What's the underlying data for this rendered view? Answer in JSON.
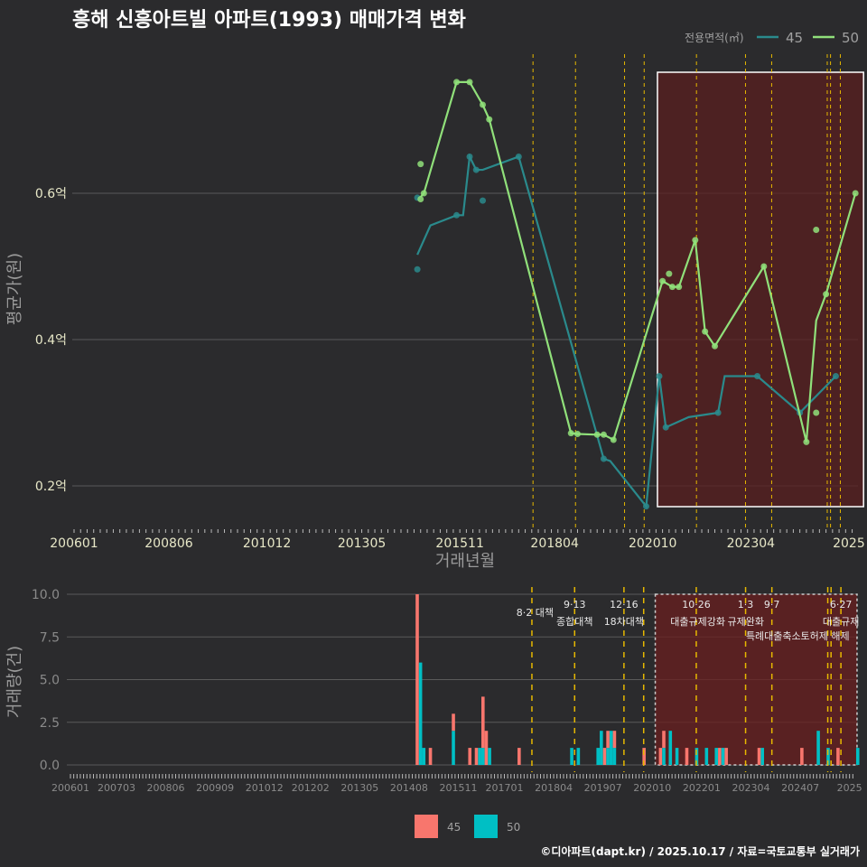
{
  "title": "흥해 신흥아트빌 아파트(1993) 매매가격 변화",
  "caption": "©디아파트(dapt.kr) / 2025.10.17 / 자료=국토교통부 실거래가",
  "colors": {
    "s45_line": "#2a8a8c",
    "s50_line": "#90e07a",
    "bar45": "#f8766d",
    "bar50": "#00bfc4",
    "event": "#e6b800",
    "highlight": "#5a1f1f"
  },
  "chart_data": [
    {
      "type": "line",
      "title": "흥해 신흥아트빌 아파트(1993) 매매가격 변화",
      "xlabel": "거래년월",
      "ylabel": "평균가(원)",
      "ylim": [
        0.15,
        0.8
      ],
      "yticks": [
        {
          "v": 0.2,
          "label": "0.2억"
        },
        {
          "v": 0.4,
          "label": "0.4억"
        },
        {
          "v": 0.6,
          "label": "0.6억"
        }
      ],
      "xticks": [
        "200601",
        "200806",
        "201012",
        "201305",
        "201511",
        "201804",
        "202010",
        "202304",
        "2025"
      ],
      "legend": {
        "title": "전용면적(㎡)",
        "entries": [
          "45",
          "50"
        ],
        "position": "top-right"
      },
      "series": [
        {
          "name": "45",
          "line": [
            [
              "201410",
              0.516
            ],
            [
              "201502",
              0.556
            ],
            [
              "201510",
              0.57
            ],
            [
              "201512",
              0.57
            ],
            [
              "201602",
              0.65
            ],
            [
              "201604",
              0.632
            ],
            [
              "201606",
              0.632
            ],
            [
              "201705",
              0.65
            ],
            [
              "201907",
              0.237
            ],
            [
              "201909",
              0.234
            ],
            [
              "202008",
              0.172
            ],
            [
              "202012",
              0.35
            ],
            [
              "202102",
              0.28
            ],
            [
              "202109",
              0.294
            ],
            [
              "202206",
              0.3
            ],
            [
              "202208",
              0.35
            ],
            [
              "202306",
              0.35
            ],
            [
              "202407",
              0.3
            ],
            [
              "202506",
              0.35
            ]
          ],
          "points": [
            [
              "201410",
              0.496
            ],
            [
              "201410",
              0.594
            ],
            [
              "201606",
              0.59
            ],
            [
              "201510",
              0.57
            ],
            [
              "201602",
              0.65
            ],
            [
              "201604",
              0.632
            ],
            [
              "201705",
              0.65
            ],
            [
              "201907",
              0.237
            ],
            [
              "202008",
              0.172
            ],
            [
              "202012",
              0.35
            ],
            [
              "202102",
              0.28
            ],
            [
              "202206",
              0.3
            ],
            [
              "202306",
              0.35
            ],
            [
              "202407",
              0.3
            ],
            [
              "202506",
              0.35
            ]
          ]
        },
        {
          "name": "50",
          "line": [
            [
              "201411",
              0.595
            ],
            [
              "201412",
              0.6
            ],
            [
              "201510",
              0.752
            ],
            [
              "201602",
              0.752
            ],
            [
              "201606",
              0.721
            ],
            [
              "201608",
              0.701
            ],
            [
              "201809",
              0.272
            ],
            [
              "201811",
              0.271
            ],
            [
              "201905",
              0.27
            ],
            [
              "201907",
              0.27
            ],
            [
              "201910",
              0.263
            ],
            [
              "202101",
              0.48
            ],
            [
              "202104",
              0.472
            ],
            [
              "202106",
              0.472
            ],
            [
              "202111",
              0.536
            ],
            [
              "202202",
              0.411
            ],
            [
              "202205",
              0.391
            ],
            [
              "202308",
              0.5
            ],
            [
              "202409",
              0.26
            ],
            [
              "202412",
              0.426
            ],
            [
              "202503",
              0.462
            ],
            [
              "202512",
              0.6
            ]
          ],
          "points": [
            [
              "201411",
              0.64
            ],
            [
              "201411",
              0.592
            ],
            [
              "201412",
              0.6
            ],
            [
              "201510",
              0.752
            ],
            [
              "201602",
              0.752
            ],
            [
              "201606",
              0.721
            ],
            [
              "201608",
              0.701
            ],
            [
              "201809",
              0.272
            ],
            [
              "201811",
              0.271
            ],
            [
              "201905",
              0.27
            ],
            [
              "201907",
              0.27
            ],
            [
              "201910",
              0.263
            ],
            [
              "202101",
              0.48
            ],
            [
              "202103",
              0.49
            ],
            [
              "202104",
              0.472
            ],
            [
              "202106",
              0.472
            ],
            [
              "202111",
              0.536
            ],
            [
              "202202",
              0.411
            ],
            [
              "202205",
              0.391
            ],
            [
              "202308",
              0.5
            ],
            [
              "202409",
              0.26
            ],
            [
              "202412",
              0.55
            ],
            [
              "202412",
              0.3
            ],
            [
              "202503",
              0.462
            ],
            [
              "202512",
              0.6
            ]
          ]
        }
      ],
      "highlight": [
        "202012",
        "202512"
      ]
    },
    {
      "type": "bar",
      "xlabel": "",
      "ylabel": "거래량(건)",
      "ylim": [
        0,
        10
      ],
      "yticks": [
        {
          "v": 0,
          "label": "0.0"
        },
        {
          "v": 2.5,
          "label": "2.5"
        },
        {
          "v": 5,
          "label": "5.0"
        },
        {
          "v": 7.5,
          "label": "7.5"
        },
        {
          "v": 10,
          "label": "10.0"
        }
      ],
      "xticks": [
        "200601",
        "200703",
        "200806",
        "200909",
        "201012",
        "201202",
        "201305",
        "201408",
        "201511",
        "201701",
        "201804",
        "201907",
        "202010",
        "202201",
        "202304",
        "202407",
        "2025"
      ],
      "legend": {
        "entries": [
          "45",
          "50"
        ],
        "position": "bottom"
      },
      "series": [
        {
          "name": "45",
          "values": [
            [
              "201410",
              10
            ],
            [
              "201502",
              1
            ],
            [
              "201509",
              1
            ],
            [
              "201602",
              1
            ],
            [
              "201604",
              1
            ],
            [
              "201606",
              3
            ],
            [
              "201607",
              2
            ],
            [
              "201705",
              1
            ],
            [
              "201907",
              1
            ],
            [
              "201908",
              1
            ],
            [
              "201910",
              1
            ],
            [
              "202007",
              1
            ],
            [
              "202012",
              1
            ],
            [
              "202101",
              1
            ],
            [
              "202108",
              1
            ],
            [
              "202206",
              1
            ],
            [
              "202208",
              1
            ],
            [
              "202306",
              1
            ],
            [
              "202407",
              1
            ],
            [
              "202506",
              1
            ]
          ]
        },
        {
          "name": "50",
          "values": [
            [
              "201411",
              6
            ],
            [
              "201412",
              1
            ],
            [
              "201509",
              2
            ],
            [
              "201602",
              0
            ],
            [
              "201605",
              1
            ],
            [
              "201606",
              1
            ],
            [
              "201608",
              1
            ],
            [
              "201809",
              1
            ],
            [
              "201811",
              1
            ],
            [
              "201905",
              1
            ],
            [
              "201906",
              2
            ],
            [
              "201908",
              1
            ],
            [
              "201909",
              2
            ],
            [
              "201910",
              1
            ],
            [
              "202101",
              1
            ],
            [
              "202103",
              2
            ],
            [
              "202105",
              1
            ],
            [
              "202111",
              1
            ],
            [
              "202202",
              1
            ],
            [
              "202205",
              1
            ],
            [
              "202207",
              1
            ],
            [
              "202306",
              0
            ],
            [
              "202307",
              1
            ],
            [
              "202412",
              2
            ],
            [
              "202503",
              1
            ],
            [
              "202512",
              1
            ]
          ]
        }
      ],
      "highlight": [
        "202012",
        "202512"
      ]
    }
  ],
  "events": [
    {
      "date": "201708",
      "line1": "",
      "line2": "8·2 대책"
    },
    {
      "date": "201809",
      "line1": "9·13",
      "line2": "종합대책"
    },
    {
      "date": "201912",
      "line1": "12·16",
      "line2": "18차대책"
    },
    {
      "date": "202006",
      "line1": "",
      "line2": ""
    },
    {
      "date": "202110",
      "line1": "10·26",
      "line2": "대출규제강화"
    },
    {
      "date": "202301",
      "line1": "1·3",
      "line2": "규제완화"
    },
    {
      "date": "202309",
      "line1": "9·7",
      "line2": "특례대출축소"
    },
    {
      "date": "202502",
      "line1": "",
      "line2": "토허제 해제"
    },
    {
      "date": "202503",
      "line1": "",
      "line2": ""
    },
    {
      "date": "202506",
      "line1": "6·27",
      "line2": "대출규제"
    }
  ]
}
